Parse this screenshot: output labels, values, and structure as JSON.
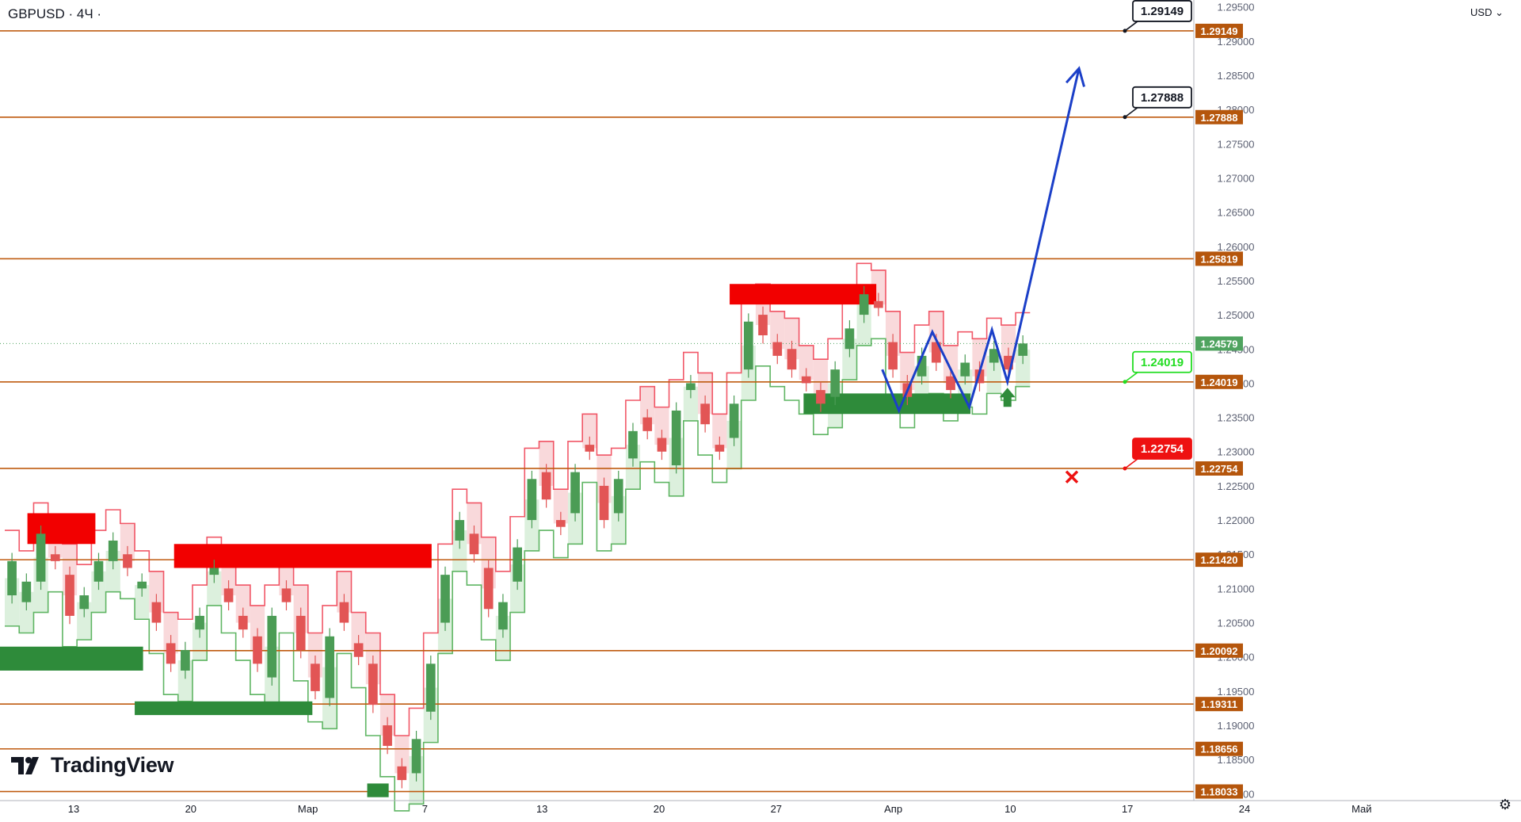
{
  "header": {
    "symbol_label": "GBPUSD · 4Ч ·",
    "currency_label": "USD ⌄"
  },
  "brand": {
    "logo_text": "TradingView"
  },
  "settings_icon": "gear-icon",
  "colors": {
    "level_line": "#bf5b10",
    "level_tag_bg": "#b5560c",
    "last_price_bg": "#4fa35f",
    "up_candle": "#4b9c55",
    "down_candle": "#e25555",
    "supply_zone": "#f20000",
    "demand_zone": "#2e8b3a",
    "projection": "#1b3fc8",
    "target_tag_green": "#22dd22",
    "target_tag_red": "#ee1111",
    "stop_marker": "#ee1111",
    "buy_arrow": "#2e8b3a"
  },
  "chart_data": {
    "type": "candlestick",
    "symbol": "GBPUSD",
    "timeframe": "4Ч",
    "currency": "USD",
    "y_range": [
      1.179,
      1.296
    ],
    "y_axis_ticks": [
      "1.29500",
      "1.29000",
      "1.28500",
      "1.28000",
      "1.27500",
      "1.27000",
      "1.26500",
      "1.26000",
      "1.25500",
      "1.25000",
      "1.24500",
      "1.24000",
      "1.23500",
      "1.23000",
      "1.22500",
      "1.22000",
      "1.21500",
      "1.21000",
      "1.20500",
      "1.20000",
      "1.19500",
      "1.19000",
      "1.18500",
      "1.18000"
    ],
    "x_axis_ticks": [
      "13",
      "20",
      "Мар",
      "7",
      "13",
      "20",
      "27",
      "Апр",
      "10",
      "17",
      "24",
      "Май"
    ],
    "last_price": {
      "value": 1.24579,
      "label": "1.24579"
    },
    "levels": [
      {
        "value": 1.29149,
        "label": "1.29149"
      },
      {
        "value": 1.27888,
        "label": "1.27888"
      },
      {
        "value": 1.25819,
        "label": "1.25819"
      },
      {
        "value": 1.24019,
        "label": "1.24019"
      },
      {
        "value": 1.22754,
        "label": "1.22754"
      },
      {
        "value": 1.2142,
        "label": "1.21420"
      },
      {
        "value": 1.20092,
        "label": "1.20092"
      },
      {
        "value": 1.19311,
        "label": "1.19311"
      },
      {
        "value": 1.18656,
        "label": "1.18656"
      },
      {
        "value": 1.18033,
        "label": "1.18033"
      }
    ],
    "callouts": [
      {
        "value": 1.29149,
        "label": "1.29149",
        "style": "target"
      },
      {
        "value": 1.27888,
        "label": "1.27888",
        "style": "target"
      },
      {
        "value": 1.24019,
        "label": "1.24019",
        "style": "entry"
      },
      {
        "value": 1.22754,
        "label": "1.22754",
        "style": "stop"
      }
    ],
    "price_path": [
      [
        1.209,
        1.214
      ],
      [
        1.208,
        1.211
      ],
      [
        1.211,
        1.218
      ],
      [
        1.215,
        1.214
      ],
      [
        1.212,
        1.206
      ],
      [
        1.207,
        1.209
      ],
      [
        1.211,
        1.214
      ],
      [
        1.214,
        1.217
      ],
      [
        1.215,
        1.213
      ],
      [
        1.21,
        1.211
      ],
      [
        1.208,
        1.205
      ],
      [
        1.202,
        1.199
      ],
      [
        1.198,
        1.201
      ],
      [
        1.204,
        1.206
      ],
      [
        1.212,
        1.213
      ],
      [
        1.21,
        1.208
      ],
      [
        1.206,
        1.204
      ],
      [
        1.203,
        1.199
      ],
      [
        1.197,
        1.206
      ],
      [
        1.21,
        1.208
      ],
      [
        1.206,
        1.201
      ],
      [
        1.199,
        1.195
      ],
      [
        1.194,
        1.203
      ],
      [
        1.208,
        1.205
      ],
      [
        1.202,
        1.2
      ],
      [
        1.199,
        1.193
      ],
      [
        1.19,
        1.187
      ],
      [
        1.184,
        1.182
      ],
      [
        1.183,
        1.188
      ],
      [
        1.192,
        1.199
      ],
      [
        1.205,
        1.212
      ],
      [
        1.217,
        1.22
      ],
      [
        1.218,
        1.215
      ],
      [
        1.213,
        1.207
      ],
      [
        1.204,
        1.208
      ],
      [
        1.211,
        1.216
      ],
      [
        1.22,
        1.226
      ],
      [
        1.227,
        1.223
      ],
      [
        1.22,
        1.219
      ],
      [
        1.221,
        1.227
      ],
      [
        1.231,
        1.23
      ],
      [
        1.225,
        1.22
      ],
      [
        1.221,
        1.226
      ],
      [
        1.229,
        1.233
      ],
      [
        1.235,
        1.233
      ],
      [
        1.232,
        1.23
      ],
      [
        1.228,
        1.236
      ],
      [
        1.239,
        1.24
      ],
      [
        1.237,
        1.234
      ],
      [
        1.231,
        1.23
      ],
      [
        1.232,
        1.237
      ],
      [
        1.242,
        1.249
      ],
      [
        1.25,
        1.247
      ],
      [
        1.246,
        1.244
      ],
      [
        1.245,
        1.242
      ],
      [
        1.241,
        1.24
      ],
      [
        1.239,
        1.237
      ],
      [
        1.238,
        1.242
      ],
      [
        1.245,
        1.248
      ],
      [
        1.25,
        1.253
      ],
      [
        1.252,
        1.251
      ],
      [
        1.246,
        1.242
      ],
      [
        1.24,
        1.238
      ],
      [
        1.241,
        1.244
      ],
      [
        1.246,
        1.243
      ],
      [
        1.241,
        1.239
      ],
      [
        1.241,
        1.243
      ],
      [
        1.242,
        1.24
      ],
      [
        1.243,
        1.245
      ],
      [
        1.244,
        1.242
      ],
      [
        1.244,
        1.2458
      ]
    ],
    "supply_zones": [
      {
        "t0": 0.023,
        "t1": 0.08,
        "y0": 1.2165,
        "y1": 1.221
      },
      {
        "t0": 0.146,
        "t1": 0.362,
        "y0": 1.213,
        "y1": 1.2165
      },
      {
        "t0": 0.612,
        "t1": 0.735,
        "y0": 1.2515,
        "y1": 1.2545
      }
    ],
    "demand_zones": [
      {
        "t0": 0.0,
        "t1": 0.12,
        "y0": 1.198,
        "y1": 1.2015
      },
      {
        "t0": 0.113,
        "t1": 0.262,
        "y0": 1.1915,
        "y1": 1.1935
      },
      {
        "t0": 0.308,
        "t1": 0.326,
        "y0": 1.1795,
        "y1": 1.1815
      },
      {
        "t0": 0.674,
        "t1": 0.814,
        "y0": 1.2355,
        "y1": 1.2385
      }
    ],
    "projection_path": [
      [
        0.74,
        1.242
      ],
      [
        0.754,
        1.236
      ],
      [
        0.782,
        1.2475
      ],
      [
        0.813,
        1.2365
      ],
      [
        0.832,
        1.2478
      ],
      [
        0.845,
        1.2402
      ],
      [
        0.905,
        1.286
      ]
    ],
    "buy_arrow_at": {
      "t": 0.845,
      "value": 1.2377
    },
    "stop_marker_at": {
      "t": 0.899,
      "value": 1.2263
    }
  }
}
